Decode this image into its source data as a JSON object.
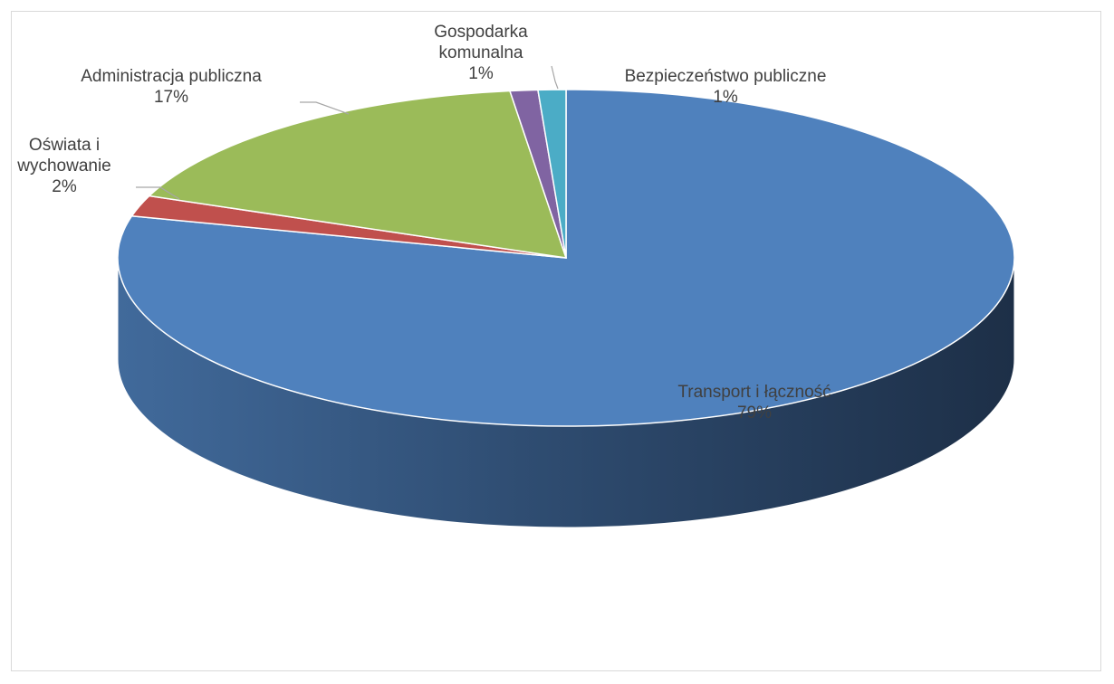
{
  "chart_data": {
    "type": "pie",
    "title": "",
    "categories": [
      "Transport i łączność",
      "Oświata i wychowanie",
      "Administracja publiczna",
      "Gospodarka komunalna",
      "Bezpieczeństwo publiczne"
    ],
    "values": [
      79,
      2,
      17,
      1,
      1
    ],
    "data_labels": [
      [
        "Transport i łączność",
        "79%"
      ],
      [
        "Oświata i",
        "wychowanie",
        "2%"
      ],
      [
        "Administracja publiczna",
        "17%"
      ],
      [
        "Gospodarka",
        "komunalna",
        "1%"
      ],
      [
        "Bezpieczeństwo publiczne",
        "1%"
      ]
    ],
    "colors": [
      "#4f81bd",
      "#c0504d",
      "#9bbb59",
      "#8064a2",
      "#4bacc6"
    ],
    "legend": "none",
    "style": "3d"
  }
}
